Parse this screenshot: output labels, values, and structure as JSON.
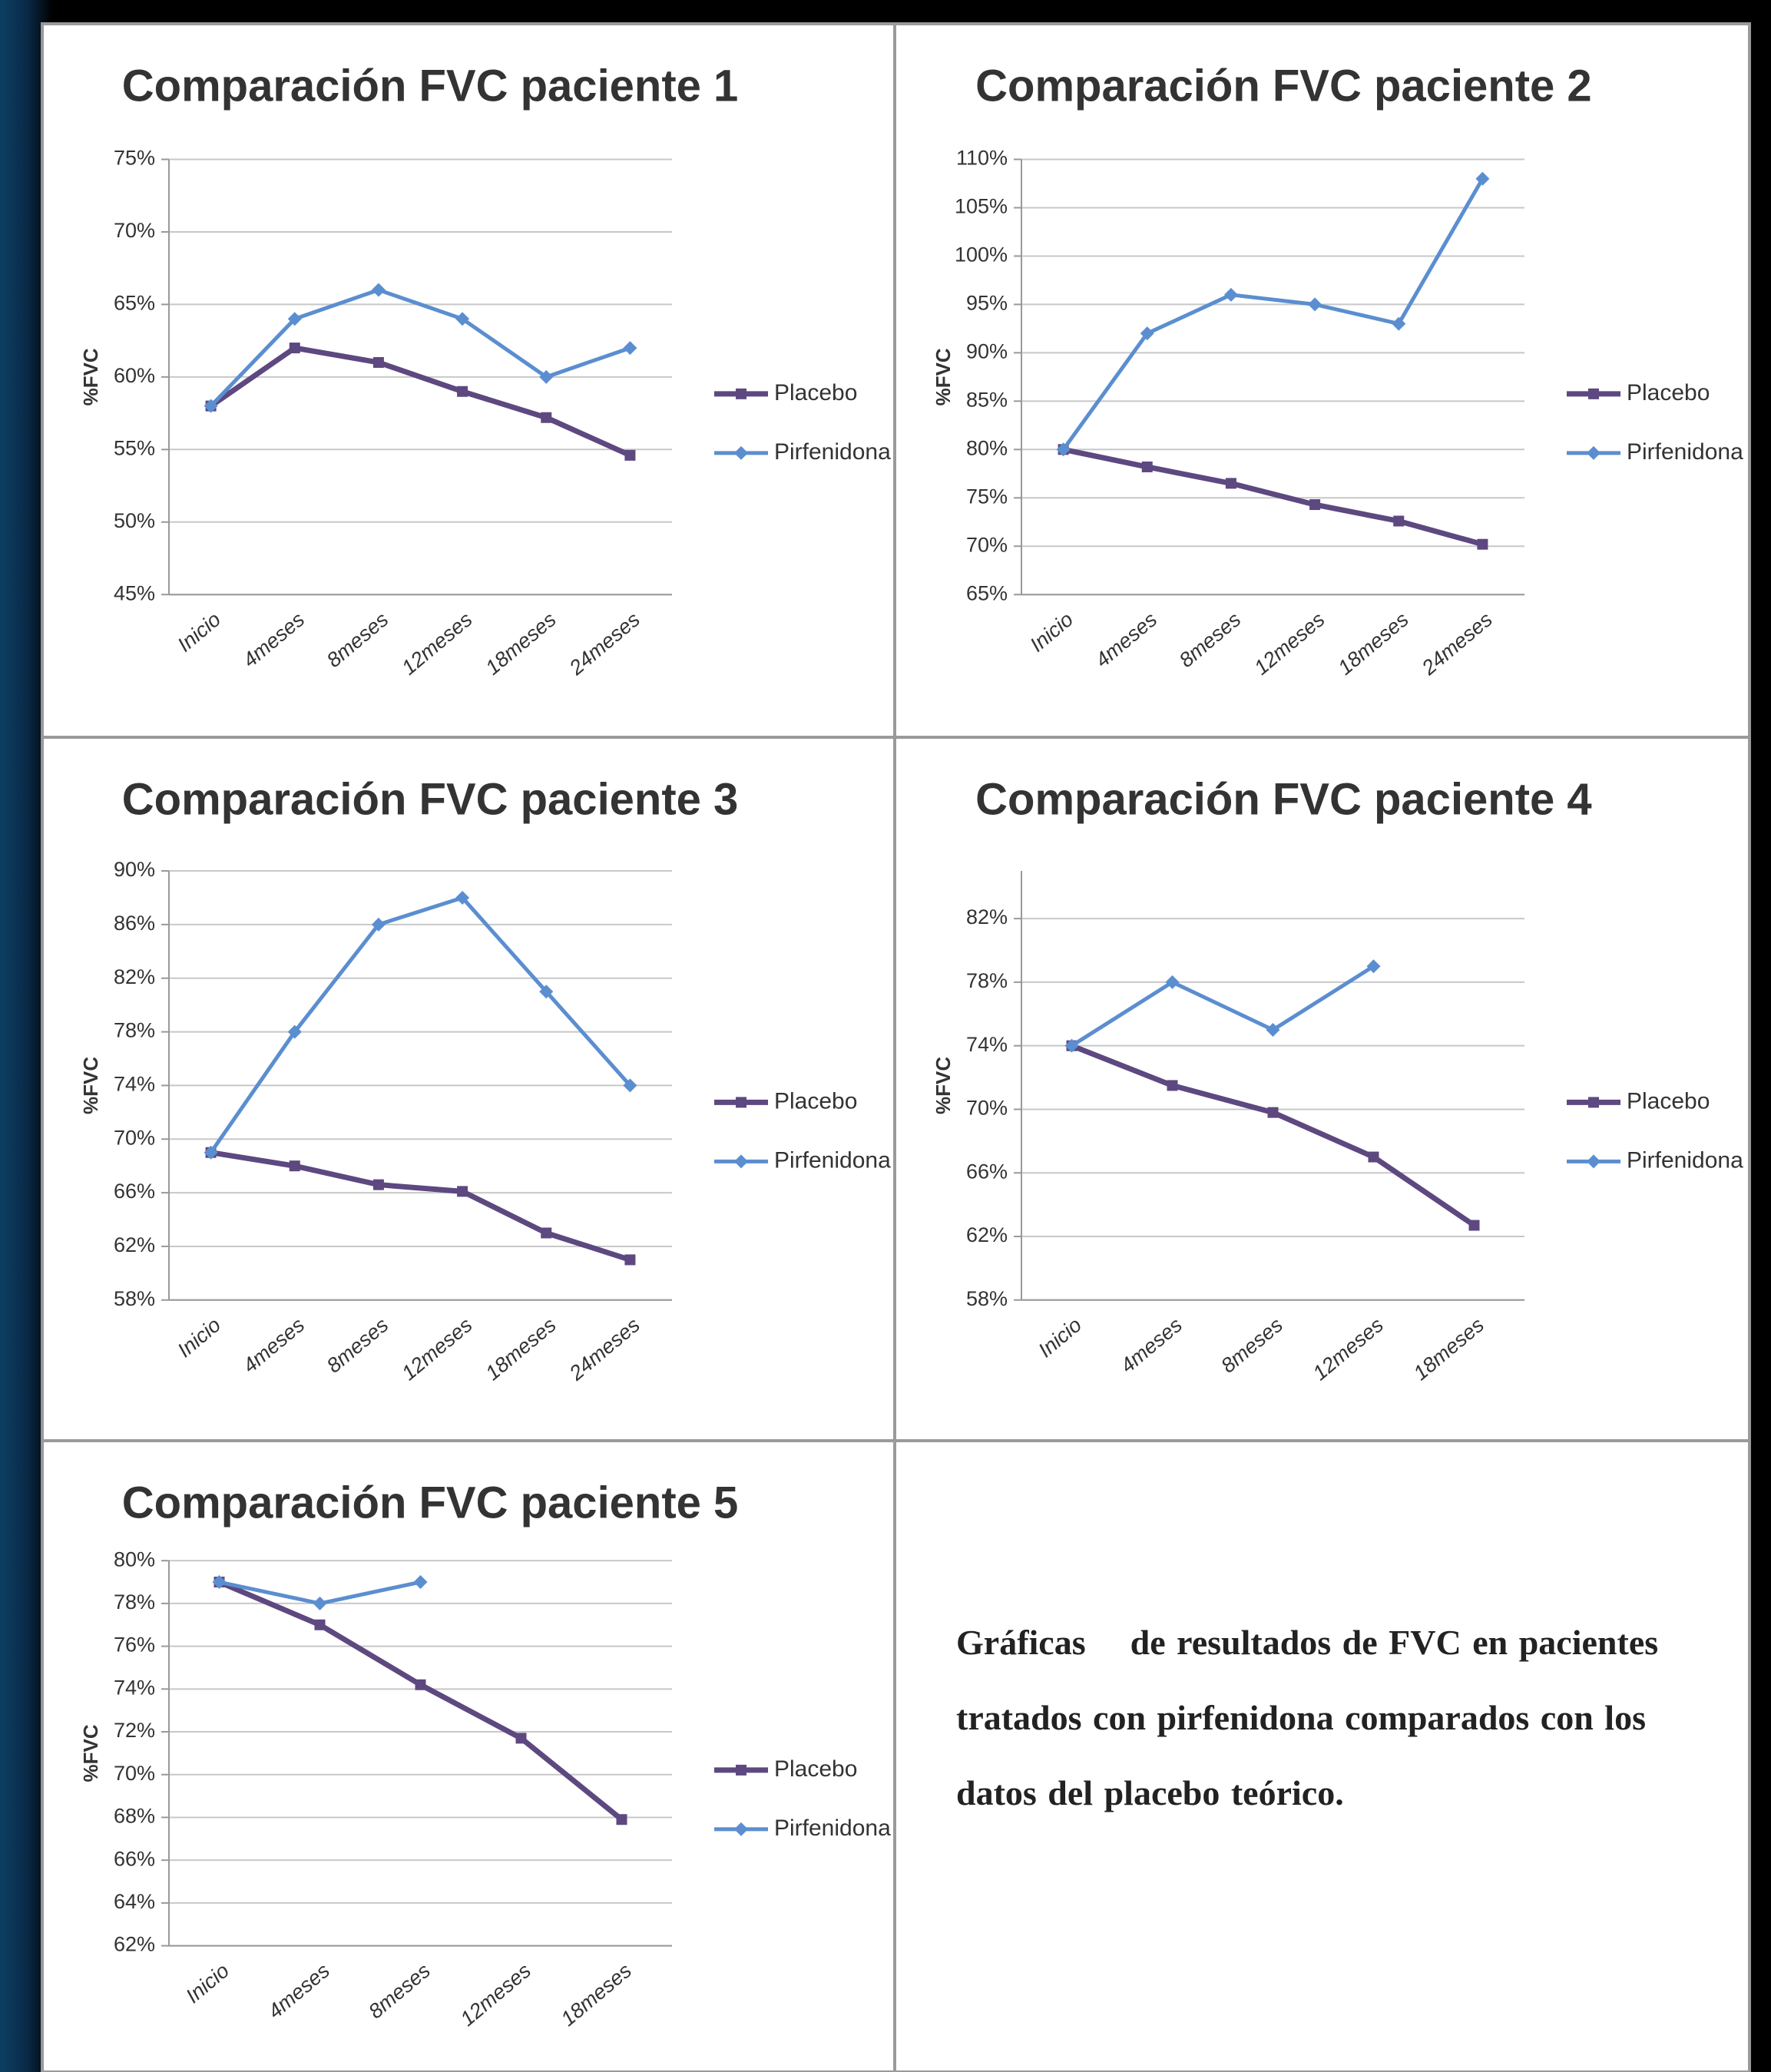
{
  "chart_data": [
    {
      "type": "line",
      "title": "Comparación FVC paciente 1",
      "y_label": "%FVC",
      "categories": [
        "Inicio",
        "4meses",
        "8meses",
        "12meses",
        "18meses",
        "24meses"
      ],
      "series": [
        {
          "name": "Placebo",
          "color": "#5d4880",
          "marker": "square",
          "values": [
            58,
            62,
            61,
            59,
            57.2,
            54.6
          ]
        },
        {
          "name": "Pirfenidona",
          "color": "#5b8ed0",
          "marker": "diamond",
          "values": [
            58,
            64,
            66,
            64,
            60,
            62
          ]
        }
      ],
      "ylim": [
        45,
        75
      ],
      "yticks": [
        {
          "value": 45,
          "label": "45%"
        },
        {
          "value": 50,
          "label": "50%"
        },
        {
          "value": 55,
          "label": "55%"
        },
        {
          "value": 60,
          "label": "60%"
        },
        {
          "value": 65,
          "label": "65%"
        },
        {
          "value": 70,
          "label": "70%"
        },
        {
          "value": 75,
          "label": "75%"
        }
      ],
      "grid": true,
      "legend": "right"
    },
    {
      "type": "line",
      "title": "Comparación FVC paciente 2",
      "y_label": "%FVC",
      "categories": [
        "Inicio",
        "4meses",
        "8meses",
        "12meses",
        "18meses",
        "24meses"
      ],
      "series": [
        {
          "name": "Placebo",
          "color": "#5d4880",
          "marker": "square",
          "values": [
            80,
            78.2,
            76.5,
            74.3,
            72.6,
            70.2
          ]
        },
        {
          "name": "Pirfenidona",
          "color": "#5b8ed0",
          "marker": "diamond",
          "values": [
            80,
            92,
            96,
            95,
            93,
            108
          ]
        }
      ],
      "ylim": [
        65,
        110
      ],
      "yticks": [
        {
          "value": 65,
          "label": "65%"
        },
        {
          "value": 70,
          "label": "70%"
        },
        {
          "value": 75,
          "label": "75%"
        },
        {
          "value": 80,
          "label": "80%"
        },
        {
          "value": 85,
          "label": "85%"
        },
        {
          "value": 90,
          "label": "90%"
        },
        {
          "value": 95,
          "label": "95%"
        },
        {
          "value": 100,
          "label": "100%"
        },
        {
          "value": 105,
          "label": "105%"
        },
        {
          "value": 110,
          "label": "110%"
        }
      ],
      "grid": true,
      "legend": "right"
    },
    {
      "type": "line",
      "title": "Comparación FVC paciente 3",
      "y_label": "%FVC",
      "categories": [
        "Inicio",
        "4meses",
        "8meses",
        "12meses",
        "18meses",
        "24meses"
      ],
      "series": [
        {
          "name": "Placebo",
          "color": "#5d4880",
          "marker": "square",
          "values": [
            69,
            68,
            66.6,
            66.1,
            63,
            61
          ]
        },
        {
          "name": "Pirfenidona",
          "color": "#5b8ed0",
          "marker": "diamond",
          "values": [
            69,
            78,
            86,
            88,
            81,
            74
          ]
        }
      ],
      "ylim": [
        58,
        90
      ],
      "yticks": [
        {
          "value": 58,
          "label": "58%"
        },
        {
          "value": 62,
          "label": "62%"
        },
        {
          "value": 66,
          "label": "66%"
        },
        {
          "value": 70,
          "label": "70%"
        },
        {
          "value": 74,
          "label": "74%"
        },
        {
          "value": 78,
          "label": "78%"
        },
        {
          "value": 82,
          "label": "82%"
        },
        {
          "value": 86,
          "label": "86%"
        },
        {
          "value": 90,
          "label": "90%"
        }
      ],
      "grid": true,
      "legend": "right"
    },
    {
      "type": "line",
      "title": "Comparación FVC paciente 4",
      "y_label": "%FVC",
      "categories": [
        "Inicio",
        "4meses",
        "8meses",
        "12meses",
        "18meses"
      ],
      "series": [
        {
          "name": "Placebo",
          "color": "#5d4880",
          "marker": "square",
          "values": [
            74,
            71.5,
            69.8,
            67,
            62.7
          ]
        },
        {
          "name": "Pirfenidona",
          "color": "#5b8ed0",
          "marker": "diamond",
          "values": [
            74,
            78,
            75,
            79,
            null
          ]
        }
      ],
      "ylim": [
        58,
        85
      ],
      "yticks": [
        {
          "value": 58,
          "label": "58%"
        },
        {
          "value": 62,
          "label": "62%"
        },
        {
          "value": 66,
          "label": "66%"
        },
        {
          "value": 70,
          "label": "70%"
        },
        {
          "value": 74,
          "label": "74%"
        },
        {
          "value": 78,
          "label": "78%"
        },
        {
          "value": 82,
          "label": "82%"
        }
      ],
      "grid": true,
      "legend": "right"
    },
    {
      "type": "line",
      "title": "Comparación FVC paciente 5",
      "y_label": "%FVC",
      "categories": [
        "Inicio",
        "4meses",
        "8meses",
        "12meses",
        "18meses"
      ],
      "series": [
        {
          "name": "Placebo",
          "color": "#5d4880",
          "marker": "square",
          "values": [
            79,
            77,
            74.2,
            71.7,
            67.9
          ]
        },
        {
          "name": "Pirfenidona",
          "color": "#5b8ed0",
          "marker": "diamond",
          "values": [
            79,
            78,
            79,
            null,
            null
          ]
        }
      ],
      "ylim": [
        62,
        80
      ],
      "yticks": [
        {
          "value": 62,
          "label": "62%"
        },
        {
          "value": 64,
          "label": "64%"
        },
        {
          "value": 66,
          "label": "66%"
        },
        {
          "value": 68,
          "label": "68%"
        },
        {
          "value": 70,
          "label": "70%"
        },
        {
          "value": 72,
          "label": "72%"
        },
        {
          "value": 74,
          "label": "74%"
        },
        {
          "value": 76,
          "label": "76%"
        },
        {
          "value": 78,
          "label": "78%"
        },
        {
          "value": 80,
          "label": "80%"
        }
      ],
      "grid": true,
      "legend": "right"
    }
  ],
  "caption": "Gráficas    de resultados de FVC en pacientes tratados con pirfenidona comparados con los datos del placebo teórico."
}
